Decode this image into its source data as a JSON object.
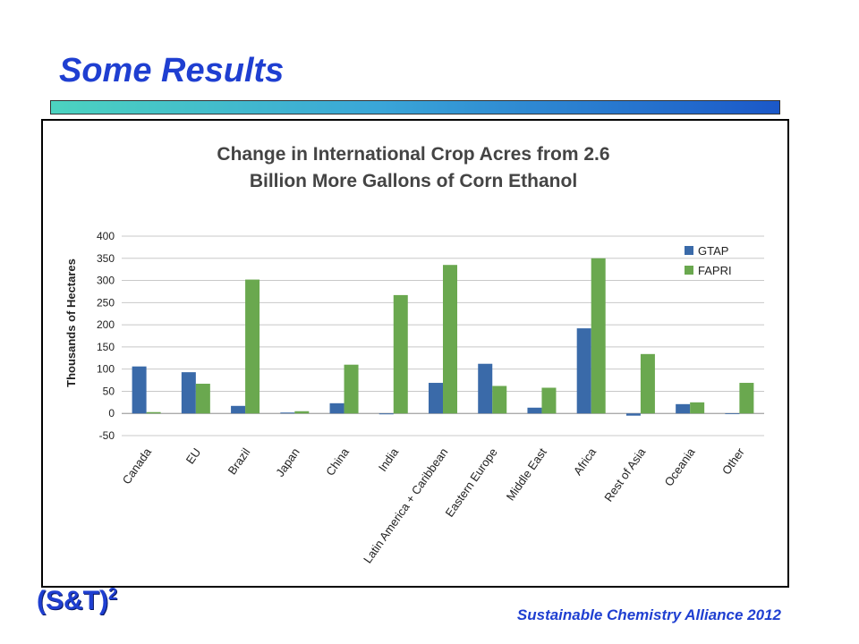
{
  "slide": {
    "title": "Some Results",
    "logo_text": "(S&T)",
    "logo_sup": "2",
    "footer": "Sustainable Chemistry Alliance 2012"
  },
  "colors": {
    "title": "#1f3fd1",
    "gtap": "#3a6aa9",
    "fapri": "#6aa84f"
  },
  "chart_data": {
    "type": "bar",
    "title_lines": [
      "Change in International Crop Acres from 2.6",
      "Billion More Gallons of Corn Ethanol"
    ],
    "xlabel": "",
    "ylabel": "Thousands of Hectares",
    "ylim": [
      -50,
      400
    ],
    "yticks": [
      -50,
      0,
      50,
      100,
      150,
      200,
      250,
      300,
      350,
      400
    ],
    "grid": true,
    "legend_position": "top-right",
    "categories": [
      "Canada",
      "EU",
      "Brazil",
      "Japan",
      "China",
      "India",
      "Latin America + Caribbean",
      "Eastern Europe",
      "Middle East",
      "Africa",
      "Rest of Asia",
      "Oceania",
      "Other"
    ],
    "series": [
      {
        "name": "GTAP",
        "color": "#3a6aa9",
        "values": [
          106,
          93,
          17,
          2,
          23,
          -2,
          69,
          112,
          13,
          192,
          -5,
          21,
          0
        ]
      },
      {
        "name": "FAPRI",
        "color": "#6aa84f",
        "values": [
          3,
          67,
          302,
          5,
          110,
          267,
          335,
          62,
          58,
          350,
          134,
          25,
          69
        ]
      }
    ]
  }
}
